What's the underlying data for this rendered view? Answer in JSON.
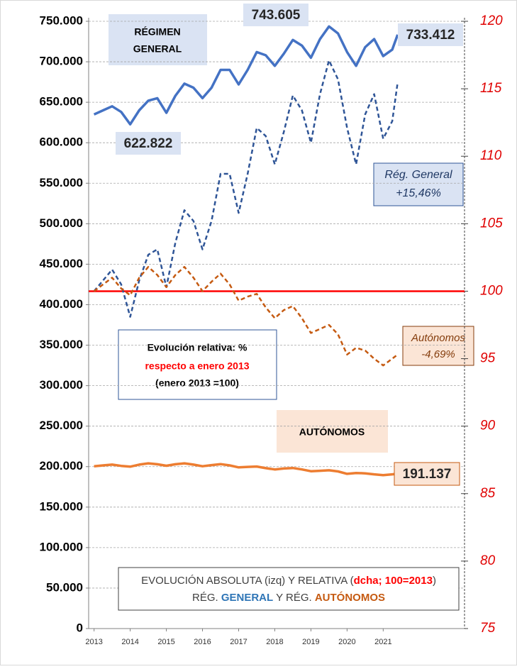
{
  "chart_data": {
    "type": "line",
    "x": [
      2013,
      2013.25,
      2013.5,
      2013.75,
      2014,
      2014.25,
      2014.5,
      2014.75,
      2015,
      2015.25,
      2015.5,
      2015.75,
      2016,
      2016.25,
      2016.5,
      2016.75,
      2017,
      2017.25,
      2017.5,
      2017.75,
      2018,
      2018.25,
      2018.5,
      2018.75,
      2019,
      2019.25,
      2019.5,
      2019.75,
      2020,
      2020.25,
      2020.5,
      2020.75,
      2021,
      2021.25,
      2021.4
    ],
    "xlim": [
      2012.85,
      2023.25
    ],
    "xticks": [
      2013,
      2014,
      2015,
      2016,
      2017,
      2018,
      2019,
      2020,
      2021
    ],
    "ylim": [
      0,
      750000
    ],
    "yticks": [
      {
        "value": 0,
        "label": "0"
      },
      {
        "value": 50000,
        "label": "50.000"
      },
      {
        "value": 100000,
        "label": "100.000"
      },
      {
        "value": 150000,
        "label": "150.000"
      },
      {
        "value": 200000,
        "label": "200.000"
      },
      {
        "value": 250000,
        "label": "250.000"
      },
      {
        "value": 300000,
        "label": "300.000"
      },
      {
        "value": 350000,
        "label": "350.000"
      },
      {
        "value": 400000,
        "label": "400.000"
      },
      {
        "value": 450000,
        "label": "450.000"
      },
      {
        "value": 500000,
        "label": "500.000"
      },
      {
        "value": 550000,
        "label": "550.000"
      },
      {
        "value": 600000,
        "label": "600.000"
      },
      {
        "value": 650000,
        "label": "650.000"
      },
      {
        "value": 700000,
        "label": "700.000"
      },
      {
        "value": 750000,
        "label": "750.000"
      }
    ],
    "y2lim": [
      75,
      120
    ],
    "y2ticks": [
      75,
      80,
      85,
      90,
      95,
      100,
      105,
      110,
      115,
      120
    ],
    "grid": true,
    "reference_line": {
      "value": 100,
      "axis": "y2",
      "color": "#ff0000"
    },
    "series": [
      {
        "color": "#4472c4",
        "dashed": false,
        "values": [
          635000,
          640000,
          645000,
          638000,
          622822,
          640000,
          652000,
          655000,
          637000,
          658000,
          673000,
          668000,
          655000,
          668000,
          690000,
          690000,
          672000,
          690000,
          712000,
          708000,
          695000,
          710000,
          727000,
          720000,
          705000,
          728000,
          743605,
          735000,
          712000,
          695000,
          718000,
          728000,
          707000,
          715000,
          733412
        ],
        "value_labels": [
          null,
          null,
          null,
          null,
          "622.822",
          null,
          null,
          null,
          null,
          null,
          null,
          null,
          null,
          null,
          null,
          null,
          null,
          null,
          null,
          null,
          null,
          null,
          null,
          null,
          null,
          null,
          "743.605",
          null,
          null,
          null,
          null,
          null,
          null,
          null,
          "733.412"
        ]
      },
      {
        "color": "#ed7d31",
        "dashed": false,
        "values": [
          200500,
          201500,
          202500,
          200900,
          199900,
          202500,
          204100,
          202900,
          201100,
          202900,
          204100,
          202500,
          200500,
          201900,
          203100,
          201500,
          199100,
          199700,
          200100,
          198100,
          196500,
          197700,
          198300,
          196500,
          194300,
          194900,
          195500,
          194100,
          191100,
          192100,
          191700,
          190500,
          189500,
          190500,
          191137
        ],
        "value_labels": [
          null,
          null,
          null,
          null,
          null,
          null,
          null,
          null,
          null,
          null,
          null,
          null,
          null,
          null,
          null,
          null,
          null,
          null,
          null,
          null,
          null,
          null,
          null,
          null,
          null,
          null,
          null,
          null,
          null,
          null,
          null,
          null,
          null,
          null,
          "191.137"
        ]
      },
      {
        "color": "#2f5597",
        "dashed": true,
        "axis": "y2",
        "values": [
          100,
          100.8,
          101.6,
          100.5,
          98.1,
          100.8,
          102.7,
          103.1,
          100.3,
          103.6,
          106.0,
          105.2,
          103.1,
          105.2,
          108.7,
          108.7,
          105.8,
          108.7,
          112.1,
          111.5,
          109.4,
          111.8,
          114.5,
          113.4,
          111.0,
          114.6,
          117.1,
          115.7,
          112.1,
          109.4,
          113.1,
          114.6,
          111.3,
          112.6,
          115.46
        ]
      },
      {
        "color": "#c55a11",
        "dashed": true,
        "axis": "y2",
        "values": [
          100,
          100.5,
          101,
          100.2,
          99.7,
          101,
          101.8,
          101.2,
          100.3,
          101.2,
          101.8,
          101,
          100,
          100.7,
          101.3,
          100.5,
          99.3,
          99.6,
          99.8,
          98.8,
          98,
          98.6,
          98.9,
          98,
          96.9,
          97.2,
          97.5,
          96.8,
          95.3,
          95.8,
          95.6,
          95,
          94.5,
          95,
          95.31
        ]
      }
    ],
    "annotations": {
      "regimen": [
        "RÉGIMEN",
        "GENERAL"
      ],
      "rg_change": [
        "Rég. General",
        "+15,46%"
      ],
      "aut_change": [
        "Autónomos",
        "-4,69%"
      ],
      "relative": [
        "Evolución relativa: %",
        "respecto a enero 2013",
        "(enero 2013 =100)"
      ],
      "autonomos": "AUTÓNOMOS",
      "legend_line1": [
        "EVOLUCIÓN ABSOLUTA (izq) Y RELATIVA (",
        "dcha; 100=2013",
        ")"
      ],
      "legend_line2": [
        "RÉG. ",
        "GENERAL",
        " Y RÉG. ",
        "AUTÓNOMOS"
      ]
    }
  }
}
